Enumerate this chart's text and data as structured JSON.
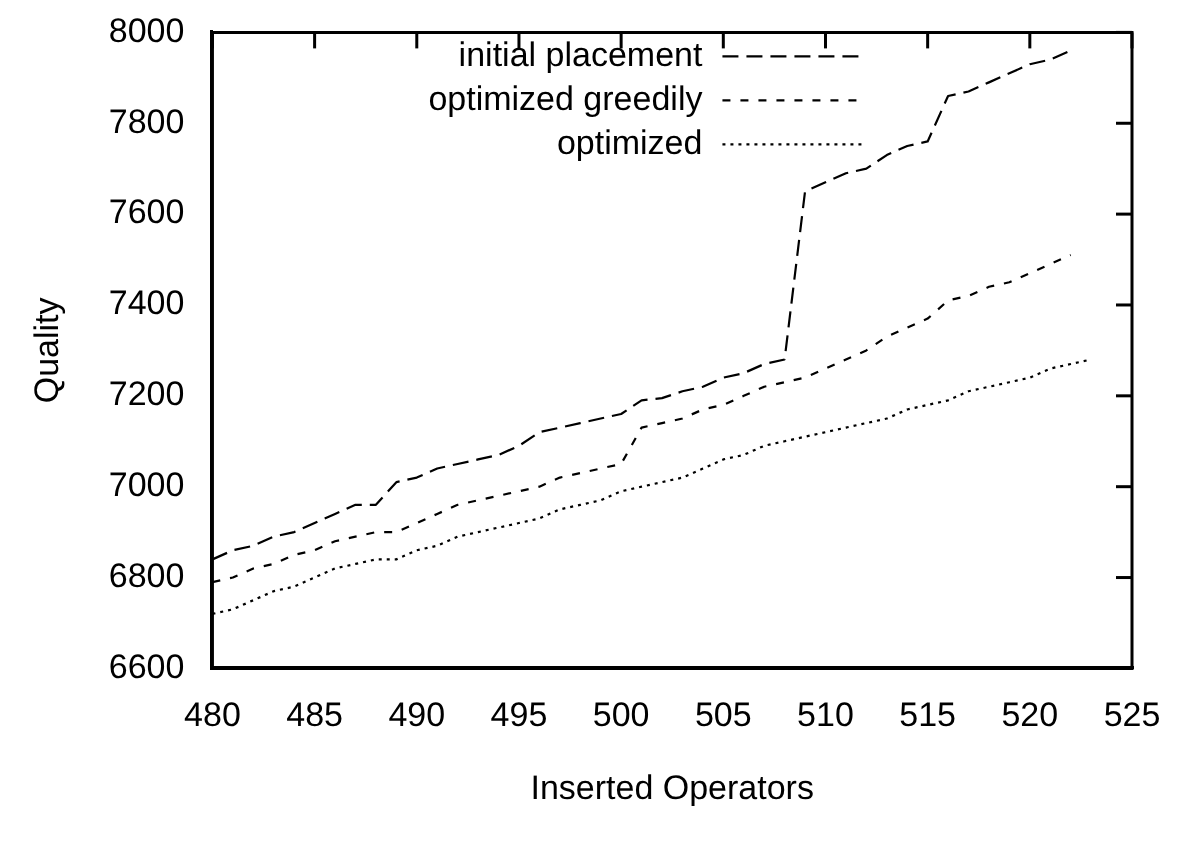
{
  "chart_data": {
    "type": "line",
    "xlabel": "Inserted Operators",
    "ylabel": "Quality",
    "xlim": [
      480,
      525
    ],
    "xticks": [
      480,
      485,
      490,
      495,
      500,
      505,
      510,
      515,
      520,
      525
    ],
    "ylim": [
      6600,
      8000
    ],
    "yticks": [
      6600,
      6800,
      7000,
      7200,
      7400,
      7600,
      7800,
      8000
    ],
    "grid": false,
    "legend": "top left",
    "marker": "none",
    "series": [
      {
        "name": "initial placement",
        "color": "#000000",
        "line_style": "dashed",
        "x": [
          480,
          481,
          482,
          483,
          484,
          485,
          486,
          487,
          488,
          489,
          490,
          491,
          492,
          493,
          494,
          495,
          496,
          497,
          498,
          499,
          500,
          501,
          502,
          503,
          504,
          505,
          506,
          507,
          508,
          509,
          510,
          511,
          512,
          513,
          514,
          515,
          516,
          517,
          518,
          519,
          520,
          521,
          522
        ],
        "values": [
          6840,
          6860,
          6870,
          6890,
          6900,
          6920,
          6940,
          6960,
          6960,
          7010,
          7020,
          7040,
          7050,
          7060,
          7070,
          7090,
          7120,
          7130,
          7140,
          7150,
          7160,
          7190,
          7195,
          7210,
          7220,
          7240,
          7250,
          7270,
          7280,
          7650,
          7670,
          7690,
          7700,
          7730,
          7750,
          7760,
          7860,
          7870,
          7890,
          7910,
          7930,
          7940,
          7960
        ]
      },
      {
        "name": "optimized greedily",
        "color": "#000000",
        "line_style": "dashed",
        "x": [
          480,
          481,
          482,
          483,
          484,
          485,
          486,
          487,
          488,
          489,
          490,
          491,
          492,
          493,
          494,
          495,
          496,
          497,
          498,
          499,
          500,
          501,
          502,
          503,
          504,
          505,
          506,
          507,
          508,
          509,
          510,
          511,
          512,
          513,
          514,
          515,
          516,
          517,
          518,
          519,
          520,
          521,
          522
        ],
        "values": [
          6790,
          6800,
          6820,
          6830,
          6850,
          6860,
          6880,
          6890,
          6900,
          6900,
          6920,
          6940,
          6960,
          6970,
          6980,
          6990,
          7000,
          7020,
          7030,
          7040,
          7050,
          7130,
          7140,
          7150,
          7170,
          7180,
          7200,
          7220,
          7230,
          7240,
          7260,
          7280,
          7300,
          7330,
          7350,
          7370,
          7410,
          7420,
          7440,
          7450,
          7470,
          7490,
          7510
        ]
      },
      {
        "name": "optimized",
        "color": "#000000",
        "line_style": "dotted",
        "x": [
          480,
          481,
          482,
          483,
          484,
          485,
          486,
          487,
          488,
          489,
          490,
          491,
          492,
          493,
          494,
          495,
          496,
          497,
          498,
          499,
          500,
          501,
          502,
          503,
          504,
          505,
          506,
          507,
          508,
          509,
          510,
          511,
          512,
          513,
          514,
          515,
          516,
          517,
          518,
          519,
          520,
          521,
          522,
          523
        ],
        "values": [
          6720,
          6730,
          6750,
          6770,
          6780,
          6800,
          6820,
          6830,
          6840,
          6840,
          6860,
          6870,
          6890,
          6900,
          6910,
          6920,
          6930,
          6950,
          6960,
          6970,
          6990,
          7000,
          7010,
          7020,
          7040,
          7060,
          7070,
          7090,
          7100,
          7110,
          7120,
          7130,
          7140,
          7150,
          7170,
          7180,
          7190,
          7210,
          7220,
          7230,
          7240,
          7260,
          7270,
          7280
        ]
      }
    ]
  }
}
